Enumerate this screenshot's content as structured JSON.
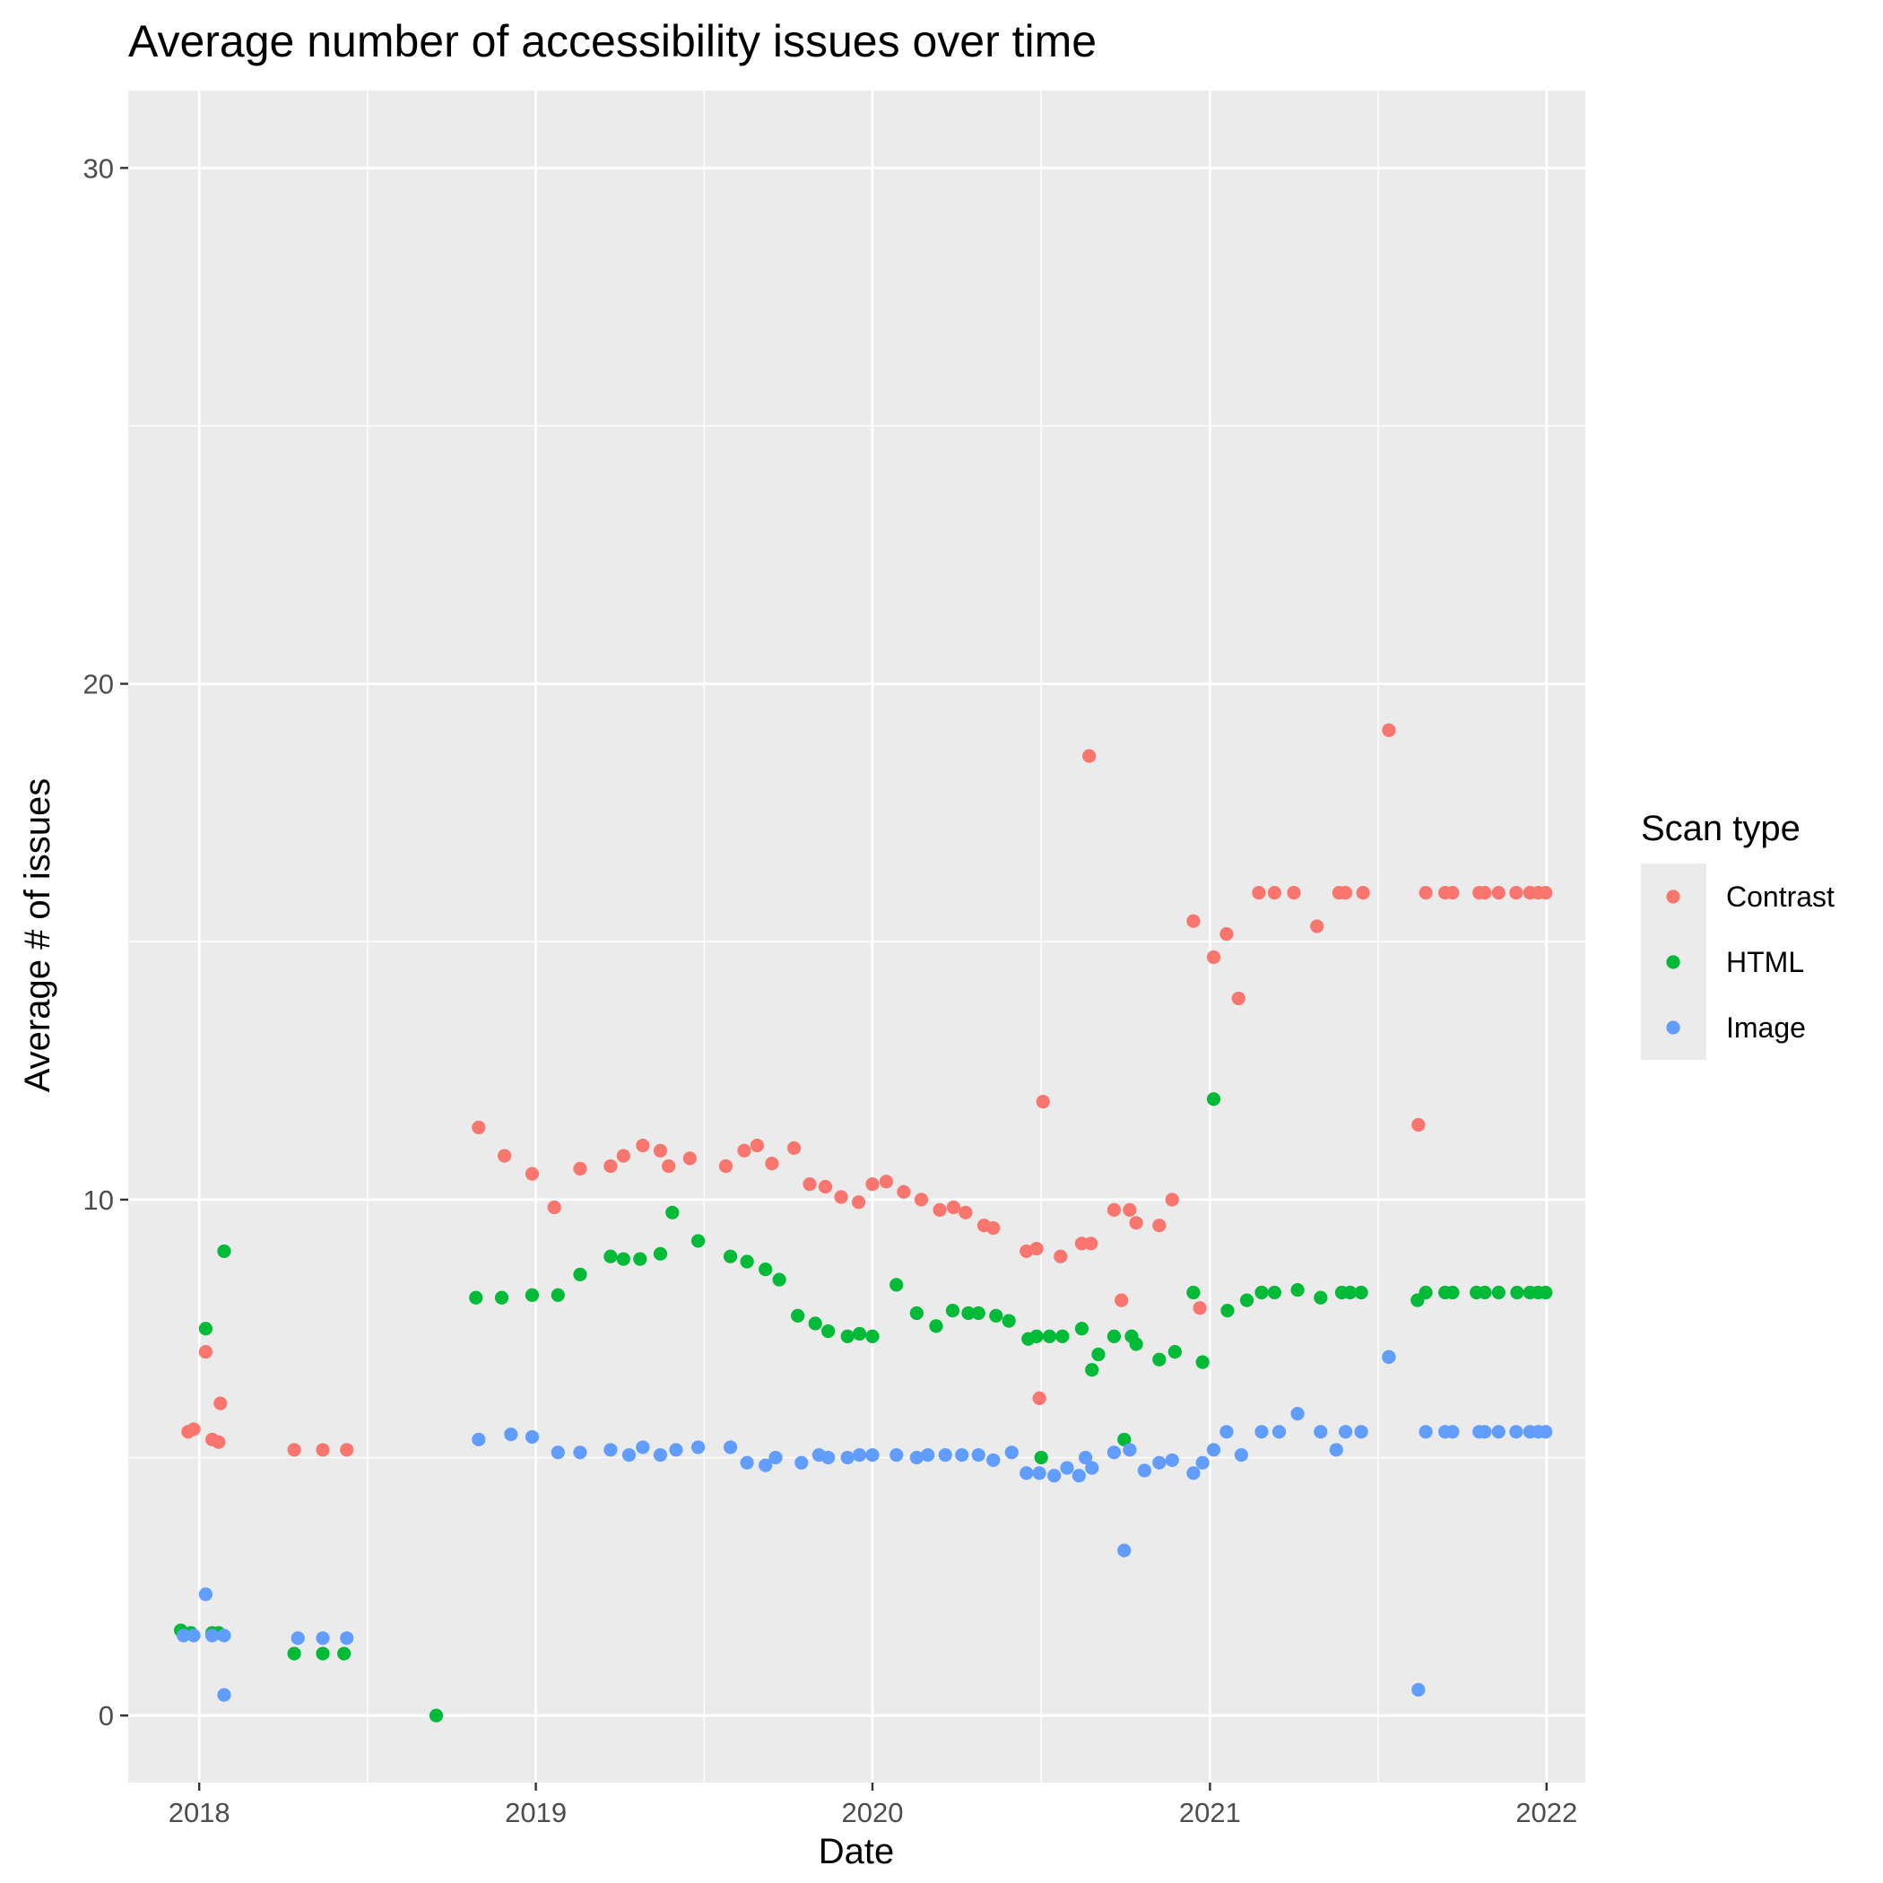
{
  "chart_data": {
    "type": "scatter",
    "title": "Average number of accessibility issues over time",
    "xlabel": "Date",
    "ylabel": "Average # of issues",
    "x_scale": "date",
    "xlim": [
      "2017-10-16",
      "2022-02-12"
    ],
    "ylim": [
      -1.3,
      31.5
    ],
    "x_ticks": [
      {
        "date": "2018-01-01",
        "label": "2018"
      },
      {
        "date": "2019-01-01",
        "label": "2019"
      },
      {
        "date": "2020-01-01",
        "label": "2020"
      },
      {
        "date": "2021-01-01",
        "label": "2021"
      },
      {
        "date": "2022-01-01",
        "label": "2022"
      }
    ],
    "y_ticks": [
      {
        "value": 0,
        "label": "0"
      },
      {
        "value": 10,
        "label": "10"
      },
      {
        "value": 20,
        "label": "20"
      },
      {
        "value": 30,
        "label": "30"
      }
    ],
    "grid": true,
    "panel_background": "#ebebeb",
    "legend": {
      "title": "Scan type",
      "position": "right"
    },
    "series": [
      {
        "name": "Contrast",
        "color": "#F8766D",
        "points": [
          [
            "2017-12-20",
            5.5
          ],
          [
            "2017-12-26",
            5.55
          ],
          [
            "2018-01-15",
            5.35
          ],
          [
            "2018-01-08",
            7.05
          ],
          [
            "2018-01-22",
            5.3
          ],
          [
            "2018-01-24",
            6.05
          ],
          [
            "2018-04-14",
            5.15
          ],
          [
            "2018-05-15",
            5.15
          ],
          [
            "2018-06-10",
            5.15
          ],
          [
            "2018-10-31",
            11.4
          ],
          [
            "2018-11-28",
            10.85
          ],
          [
            "2018-12-28",
            10.5
          ],
          [
            "2019-01-21",
            9.85
          ],
          [
            "2019-02-18",
            10.6
          ],
          [
            "2019-03-23",
            10.65
          ],
          [
            "2019-04-06",
            10.85
          ],
          [
            "2019-04-27",
            11.05
          ],
          [
            "2019-05-16",
            10.95
          ],
          [
            "2019-05-25",
            10.65
          ],
          [
            "2019-06-17",
            10.8
          ],
          [
            "2019-07-26",
            10.65
          ],
          [
            "2019-08-15",
            10.95
          ],
          [
            "2019-08-29",
            11.05
          ],
          [
            "2019-09-14",
            10.7
          ],
          [
            "2019-10-08",
            11.0
          ],
          [
            "2019-10-25",
            10.3
          ],
          [
            "2019-11-11",
            10.25
          ],
          [
            "2019-11-28",
            10.05
          ],
          [
            "2019-12-17",
            9.95
          ],
          [
            "2020-01-01",
            10.3
          ],
          [
            "2020-01-16",
            10.35
          ],
          [
            "2020-02-04",
            10.15
          ],
          [
            "2020-02-23",
            10.0
          ],
          [
            "2020-03-14",
            9.8
          ],
          [
            "2020-03-29",
            9.85
          ],
          [
            "2020-04-11",
            9.75
          ],
          [
            "2020-05-01",
            9.5
          ],
          [
            "2020-05-11",
            9.45
          ],
          [
            "2020-06-16",
            9.0
          ],
          [
            "2020-06-27",
            9.05
          ],
          [
            "2020-07-04",
            11.9
          ],
          [
            "2020-06-30",
            6.15
          ],
          [
            "2020-07-23",
            8.9
          ],
          [
            "2020-08-15",
            9.15
          ],
          [
            "2020-08-25",
            9.15
          ],
          [
            "2020-08-23",
            18.6
          ],
          [
            "2020-09-19",
            9.8
          ],
          [
            "2020-09-27",
            8.05
          ],
          [
            "2020-10-06",
            9.8
          ],
          [
            "2020-10-13",
            9.55
          ],
          [
            "2020-11-07",
            9.5
          ],
          [
            "2020-11-21",
            10.0
          ],
          [
            "2020-12-14",
            15.4
          ],
          [
            "2020-12-21",
            7.9
          ],
          [
            "2021-01-05",
            14.7
          ],
          [
            "2021-01-19",
            15.15
          ],
          [
            "2021-02-01",
            13.9
          ],
          [
            "2021-02-23",
            15.95
          ],
          [
            "2021-03-12",
            15.95
          ],
          [
            "2021-04-02",
            15.95
          ],
          [
            "2021-04-27",
            15.3
          ],
          [
            "2021-05-21",
            15.95
          ],
          [
            "2021-05-28",
            15.95
          ],
          [
            "2021-06-16",
            15.95
          ],
          [
            "2021-07-14",
            19.1
          ],
          [
            "2021-08-15",
            11.45
          ],
          [
            "2021-08-23",
            15.95
          ],
          [
            "2021-09-13",
            15.95
          ],
          [
            "2021-09-21",
            15.95
          ],
          [
            "2021-10-20",
            15.95
          ],
          [
            "2021-10-26",
            15.95
          ],
          [
            "2021-11-10",
            15.95
          ],
          [
            "2021-11-29",
            15.95
          ],
          [
            "2021-12-14",
            15.95
          ],
          [
            "2021-12-23",
            15.95
          ],
          [
            "2021-12-31",
            15.95
          ]
        ]
      },
      {
        "name": "HTML",
        "color": "#00BA38",
        "points": [
          [
            "2017-12-12",
            1.65
          ],
          [
            "2017-12-23",
            1.6
          ],
          [
            "2018-01-08",
            7.5
          ],
          [
            "2018-01-15",
            1.6
          ],
          [
            "2018-01-22",
            1.6
          ],
          [
            "2018-01-28",
            9.0
          ],
          [
            "2018-04-14",
            1.2
          ],
          [
            "2018-05-15",
            1.2
          ],
          [
            "2018-06-07",
            1.2
          ],
          [
            "2018-09-15",
            0.0
          ],
          [
            "2018-10-28",
            8.1
          ],
          [
            "2018-11-25",
            8.1
          ],
          [
            "2018-12-28",
            8.15
          ],
          [
            "2019-01-25",
            8.15
          ],
          [
            "2019-02-18",
            8.55
          ],
          [
            "2019-03-23",
            8.9
          ],
          [
            "2019-04-06",
            8.85
          ],
          [
            "2019-04-24",
            8.85
          ],
          [
            "2019-05-16",
            8.95
          ],
          [
            "2019-05-29",
            9.75
          ],
          [
            "2019-06-26",
            9.2
          ],
          [
            "2019-07-31",
            8.9
          ],
          [
            "2019-08-18",
            8.8
          ],
          [
            "2019-09-07",
            8.65
          ],
          [
            "2019-09-22",
            8.45
          ],
          [
            "2019-10-12",
            7.75
          ],
          [
            "2019-10-31",
            7.6
          ],
          [
            "2019-11-14",
            7.45
          ],
          [
            "2019-12-05",
            7.35
          ],
          [
            "2019-12-18",
            7.4
          ],
          [
            "2020-01-01",
            7.35
          ],
          [
            "2020-01-27",
            8.35
          ],
          [
            "2020-02-18",
            7.8
          ],
          [
            "2020-03-10",
            7.55
          ],
          [
            "2020-03-28",
            7.85
          ],
          [
            "2020-04-14",
            7.8
          ],
          [
            "2020-04-25",
            7.8
          ],
          [
            "2020-05-14",
            7.75
          ],
          [
            "2020-05-28",
            7.65
          ],
          [
            "2020-06-18",
            7.3
          ],
          [
            "2020-06-27",
            7.35
          ],
          [
            "2020-07-02",
            5.0
          ],
          [
            "2020-07-11",
            7.35
          ],
          [
            "2020-07-25",
            7.35
          ],
          [
            "2020-08-15",
            7.5
          ],
          [
            "2020-08-26",
            6.7
          ],
          [
            "2020-09-02",
            7.0
          ],
          [
            "2020-09-19",
            7.35
          ],
          [
            "2020-09-30",
            5.35
          ],
          [
            "2020-10-08",
            7.35
          ],
          [
            "2020-10-13",
            7.2
          ],
          [
            "2020-11-07",
            6.9
          ],
          [
            "2020-11-24",
            7.05
          ],
          [
            "2020-12-14",
            8.2
          ],
          [
            "2020-12-24",
            6.85
          ],
          [
            "2021-01-05",
            11.95
          ],
          [
            "2021-01-20",
            7.85
          ],
          [
            "2021-02-10",
            8.05
          ],
          [
            "2021-02-26",
            8.2
          ],
          [
            "2021-03-12",
            8.2
          ],
          [
            "2021-04-06",
            8.25
          ],
          [
            "2021-05-01",
            8.1
          ],
          [
            "2021-05-24",
            8.2
          ],
          [
            "2021-06-02",
            8.2
          ],
          [
            "2021-06-14",
            8.2
          ],
          [
            "2021-07-14",
            6.95
          ],
          [
            "2021-08-14",
            8.05
          ],
          [
            "2021-08-23",
            8.2
          ],
          [
            "2021-09-13",
            8.2
          ],
          [
            "2021-09-21",
            8.2
          ],
          [
            "2021-10-17",
            8.2
          ],
          [
            "2021-10-26",
            8.2
          ],
          [
            "2021-11-10",
            8.2
          ],
          [
            "2021-11-30",
            8.2
          ],
          [
            "2021-12-14",
            8.2
          ],
          [
            "2021-12-23",
            8.2
          ],
          [
            "2021-12-31",
            8.2
          ]
        ]
      },
      {
        "name": "Image",
        "color": "#619CFF",
        "points": [
          [
            "2017-12-15",
            1.55
          ],
          [
            "2017-12-26",
            1.55
          ],
          [
            "2018-01-08",
            2.35
          ],
          [
            "2018-01-15",
            1.55
          ],
          [
            "2018-01-28",
            1.55
          ],
          [
            "2018-01-28",
            0.4
          ],
          [
            "2018-04-18",
            1.5
          ],
          [
            "2018-05-15",
            1.5
          ],
          [
            "2018-06-10",
            1.5
          ],
          [
            "2018-10-31",
            5.35
          ],
          [
            "2018-12-05",
            5.45
          ],
          [
            "2018-12-28",
            5.4
          ],
          [
            "2019-01-25",
            5.1
          ],
          [
            "2019-02-18",
            5.1
          ],
          [
            "2019-03-23",
            5.15
          ],
          [
            "2019-04-12",
            5.05
          ],
          [
            "2019-04-27",
            5.2
          ],
          [
            "2019-05-16",
            5.05
          ],
          [
            "2019-06-02",
            5.15
          ],
          [
            "2019-06-26",
            5.2
          ],
          [
            "2019-07-31",
            5.2
          ],
          [
            "2019-08-18",
            4.9
          ],
          [
            "2019-09-07",
            4.85
          ],
          [
            "2019-09-18",
            5.0
          ],
          [
            "2019-10-16",
            4.9
          ],
          [
            "2019-11-04",
            5.05
          ],
          [
            "2019-11-14",
            5.0
          ],
          [
            "2019-12-05",
            5.0
          ],
          [
            "2019-12-18",
            5.05
          ],
          [
            "2020-01-01",
            5.05
          ],
          [
            "2020-01-27",
            5.05
          ],
          [
            "2020-02-18",
            5.0
          ],
          [
            "2020-03-01",
            5.05
          ],
          [
            "2020-03-20",
            5.05
          ],
          [
            "2020-04-07",
            5.05
          ],
          [
            "2020-04-25",
            5.05
          ],
          [
            "2020-05-11",
            4.95
          ],
          [
            "2020-05-31",
            5.1
          ],
          [
            "2020-06-16",
            4.7
          ],
          [
            "2020-06-30",
            4.7
          ],
          [
            "2020-07-16",
            4.65
          ],
          [
            "2020-07-30",
            4.8
          ],
          [
            "2020-08-12",
            4.65
          ],
          [
            "2020-08-19",
            5.0
          ],
          [
            "2020-08-26",
            4.8
          ],
          [
            "2020-09-19",
            5.1
          ],
          [
            "2020-09-30",
            3.2
          ],
          [
            "2020-10-06",
            5.15
          ],
          [
            "2020-10-22",
            4.75
          ],
          [
            "2020-11-07",
            4.9
          ],
          [
            "2020-11-21",
            4.95
          ],
          [
            "2020-12-14",
            4.7
          ],
          [
            "2020-12-24",
            4.9
          ],
          [
            "2021-01-05",
            5.15
          ],
          [
            "2021-01-19",
            5.5
          ],
          [
            "2021-02-04",
            5.05
          ],
          [
            "2021-02-26",
            5.5
          ],
          [
            "2021-03-17",
            5.5
          ],
          [
            "2021-04-06",
            5.85
          ],
          [
            "2021-05-01",
            5.5
          ],
          [
            "2021-05-18",
            5.15
          ],
          [
            "2021-05-28",
            5.5
          ],
          [
            "2021-06-14",
            5.5
          ],
          [
            "2021-07-14",
            6.95
          ],
          [
            "2021-08-15",
            0.5
          ],
          [
            "2021-08-23",
            5.5
          ],
          [
            "2021-09-13",
            5.5
          ],
          [
            "2021-09-21",
            5.5
          ],
          [
            "2021-10-20",
            5.5
          ],
          [
            "2021-10-26",
            5.5
          ],
          [
            "2021-11-10",
            5.5
          ],
          [
            "2021-11-29",
            5.5
          ],
          [
            "2021-12-14",
            5.5
          ],
          [
            "2021-12-23",
            5.5
          ],
          [
            "2021-12-31",
            5.5
          ]
        ]
      }
    ]
  }
}
